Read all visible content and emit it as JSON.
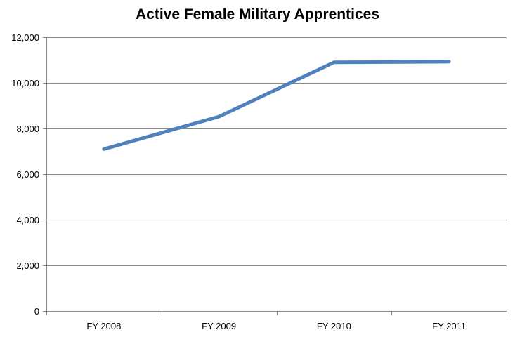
{
  "chart_data": {
    "type": "line",
    "title": "Active Female Military Apprentices",
    "xlabel": "",
    "ylabel": "",
    "categories": [
      "FY 2008",
      "FY 2009",
      "FY 2010",
      "FY 2011"
    ],
    "series": [
      {
        "name": "Active Female Military Apprentices",
        "values": [
          7100,
          8520,
          10900,
          10930
        ]
      }
    ],
    "ylim": [
      0,
      12000
    ],
    "yticks": [
      0,
      2000,
      4000,
      6000,
      8000,
      10000,
      12000
    ],
    "ytick_labels": [
      "0",
      "2,000",
      "4,000",
      "6,000",
      "8,000",
      "10,000",
      "12,000"
    ],
    "grid": true,
    "legend": "none",
    "colors": {
      "line": "#4f81bd",
      "grid": "#868686",
      "axis": "#868686"
    }
  }
}
